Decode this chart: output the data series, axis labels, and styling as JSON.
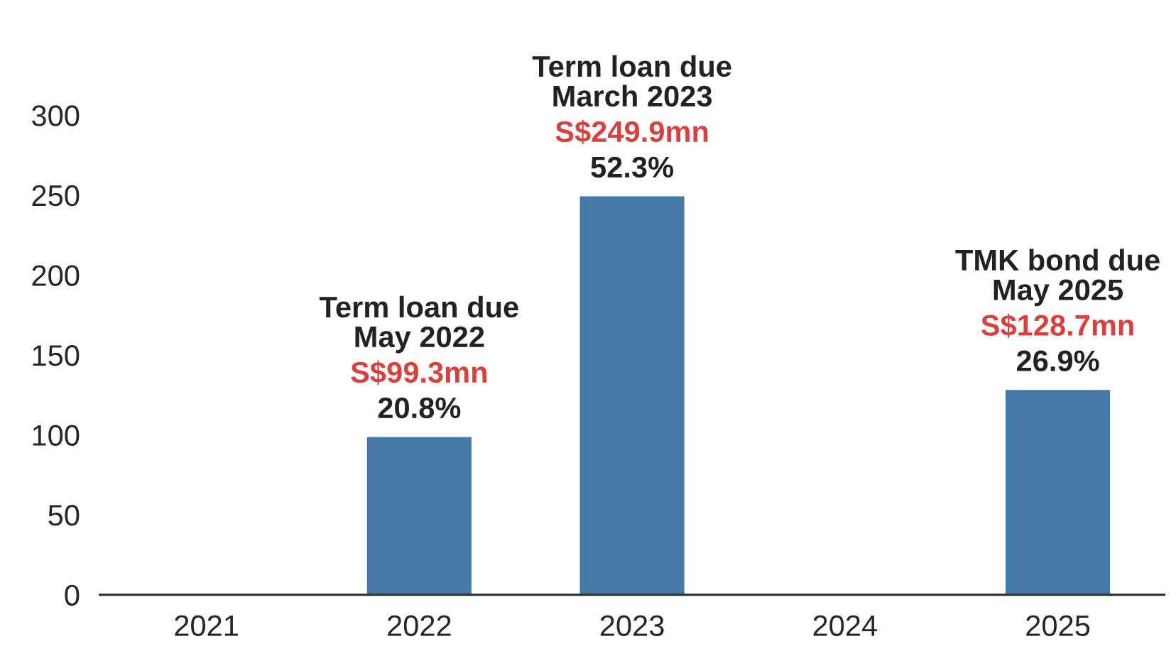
{
  "chart_data": {
    "type": "bar",
    "categories": [
      "2021",
      "2022",
      "2023",
      "2024",
      "2025"
    ],
    "values": [
      null,
      99.3,
      249.9,
      null,
      128.7
    ],
    "color": "#4579a8",
    "value_labels": [
      null,
      "S$99.3mn",
      "S$249.9mn",
      null,
      "S$128.7mn"
    ],
    "annotations": [
      "Term loan due\nMay 2022",
      {
        "text": "20.8%",
        "x": "2022",
        "y": 99.3
      },
      "Term loan due\nMarch 2023",
      {
        "text": "52.3%",
        "x": "2023",
        "y": 249.9
      },
      "TMK bond due\nMay 2025",
      {
        "text": "26.9%",
        "x": "2025",
        "y": 128.7
      }
    ],
    "ylim": [
      0,
      300
    ],
    "yticks": [
      0,
      50,
      100,
      150,
      200,
      250,
      300
    ],
    "grid": false,
    "legend": false
  }
}
